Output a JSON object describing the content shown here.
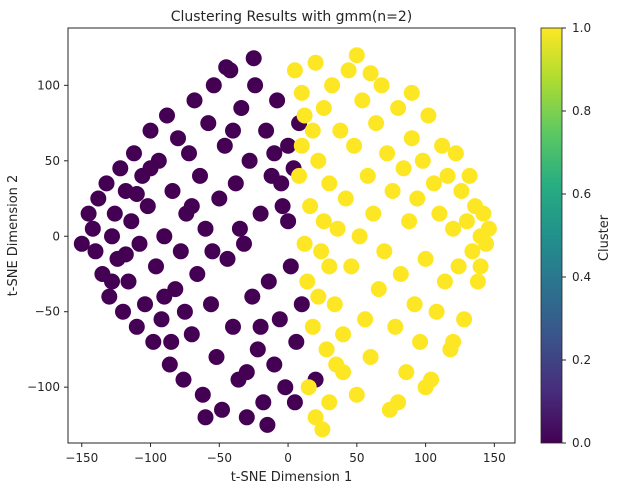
{
  "chart_data": {
    "type": "scatter",
    "title": "Clustering Results with gmm(n=2)",
    "xlabel": "t-SNE Dimension 1",
    "ylabel": "t-SNE Dimension 2",
    "xlim": [
      -160,
      165
    ],
    "ylim": [
      -137,
      138
    ],
    "xticks": [
      -150,
      -100,
      -50,
      0,
      50,
      100,
      150
    ],
    "yticks": [
      -100,
      -50,
      0,
      50,
      100
    ],
    "xtick_labels": [
      "−150",
      "−100",
      "−50",
      "0",
      "50",
      "100",
      "150"
    ],
    "ytick_labels": [
      "−100",
      "−50",
      "0",
      "50",
      "100"
    ],
    "grid": false,
    "colormap": "viridis",
    "colorbar": {
      "label": "Cluster",
      "range": [
        0.0,
        1.0
      ],
      "ticks": [
        0.0,
        0.2,
        0.4,
        0.6,
        0.8,
        1.0
      ],
      "tick_labels": [
        "0.0",
        "0.2",
        "0.4",
        "0.6",
        "0.8",
        "1.0"
      ]
    },
    "series": [
      {
        "cluster": 0,
        "color": "#440154",
        "points": [
          [
            -145,
            15
          ],
          [
            -142,
            5
          ],
          [
            -140,
            -10
          ],
          [
            -138,
            25
          ],
          [
            -135,
            -25
          ],
          [
            -132,
            35
          ],
          [
            -130,
            -40
          ],
          [
            -128,
            0
          ],
          [
            -126,
            15
          ],
          [
            -124,
            -15
          ],
          [
            -122,
            45
          ],
          [
            -120,
            -50
          ],
          [
            -118,
            30
          ],
          [
            -116,
            -30
          ],
          [
            -114,
            10
          ],
          [
            -112,
            55
          ],
          [
            -110,
            -60
          ],
          [
            -108,
            -5
          ],
          [
            -106,
            40
          ],
          [
            -104,
            -45
          ],
          [
            -102,
            20
          ],
          [
            -100,
            70
          ],
          [
            -98,
            -70
          ],
          [
            -96,
            -20
          ],
          [
            -94,
            50
          ],
          [
            -92,
            -55
          ],
          [
            -90,
            0
          ],
          [
            -88,
            80
          ],
          [
            -86,
            -85
          ],
          [
            -84,
            30
          ],
          [
            -82,
            -35
          ],
          [
            -80,
            65
          ],
          [
            -78,
            -10
          ],
          [
            -76,
            -95
          ],
          [
            -74,
            15
          ],
          [
            -72,
            55
          ],
          [
            -70,
            -65
          ],
          [
            -68,
            90
          ],
          [
            -66,
            -25
          ],
          [
            -64,
            40
          ],
          [
            -62,
            -105
          ],
          [
            -60,
            5
          ],
          [
            -58,
            75
          ],
          [
            -56,
            -45
          ],
          [
            -54,
            100
          ],
          [
            -52,
            -80
          ],
          [
            -50,
            25
          ],
          [
            -48,
            -115
          ],
          [
            -46,
            60
          ],
          [
            -44,
            -15
          ],
          [
            -42,
            110
          ],
          [
            -40,
            -60
          ],
          [
            -38,
            35
          ],
          [
            -36,
            -95
          ],
          [
            -34,
            85
          ],
          [
            -32,
            -5
          ],
          [
            -30,
            -120
          ],
          [
            -28,
            50
          ],
          [
            -26,
            -40
          ],
          [
            -24,
            100
          ],
          [
            -22,
            -75
          ],
          [
            -20,
            15
          ],
          [
            -18,
            -110
          ],
          [
            -16,
            70
          ],
          [
            -14,
            -30
          ],
          [
            -12,
            40
          ],
          [
            -10,
            -85
          ],
          [
            -8,
            90
          ],
          [
            -6,
            -55
          ],
          [
            -4,
            20
          ],
          [
            -2,
            -100
          ],
          [
            0,
            60
          ],
          [
            2,
            -20
          ],
          [
            4,
            45
          ],
          [
            6,
            -70
          ],
          [
            8,
            75
          ],
          [
            10,
            -45
          ],
          [
            -150,
            -5
          ],
          [
            -128,
            -30
          ],
          [
            -110,
            28
          ],
          [
            -90,
            -40
          ],
          [
            -70,
            20
          ],
          [
            -55,
            -10
          ],
          [
            -40,
            70
          ],
          [
            -20,
            -60
          ],
          [
            0,
            10
          ],
          [
            -5,
            35
          ],
          [
            -30,
            -90
          ],
          [
            -85,
            -70
          ],
          [
            -60,
            -120
          ],
          [
            -15,
            -125
          ],
          [
            -45,
            112
          ],
          [
            -25,
            118
          ],
          [
            -100,
            45
          ],
          [
            -118,
            -12
          ],
          [
            -75,
            -50
          ],
          [
            -35,
            5
          ],
          [
            -10,
            55
          ],
          [
            5,
            -110
          ],
          [
            20,
            -95
          ]
        ]
      },
      {
        "cluster": 1,
        "color": "#fde725",
        "points": [
          [
            5,
            110
          ],
          [
            10,
            95
          ],
          [
            12,
            80
          ],
          [
            14,
            -30
          ],
          [
            16,
            20
          ],
          [
            18,
            -60
          ],
          [
            20,
            115
          ],
          [
            22,
            50
          ],
          [
            24,
            -10
          ],
          [
            26,
            85
          ],
          [
            28,
            -75
          ],
          [
            30,
            35
          ],
          [
            32,
            100
          ],
          [
            34,
            -45
          ],
          [
            36,
            5
          ],
          [
            38,
            70
          ],
          [
            40,
            -90
          ],
          [
            42,
            25
          ],
          [
            44,
            110
          ],
          [
            46,
            -20
          ],
          [
            48,
            60
          ],
          [
            50,
            -105
          ],
          [
            52,
            0
          ],
          [
            54,
            90
          ],
          [
            56,
            -55
          ],
          [
            58,
            40
          ],
          [
            60,
            -80
          ],
          [
            62,
            15
          ],
          [
            64,
            75
          ],
          [
            66,
            -35
          ],
          [
            68,
            100
          ],
          [
            70,
            -10
          ],
          [
            72,
            55
          ],
          [
            74,
            -115
          ],
          [
            76,
            30
          ],
          [
            78,
            -60
          ],
          [
            80,
            85
          ],
          [
            82,
            -25
          ],
          [
            84,
            45
          ],
          [
            86,
            -90
          ],
          [
            88,
            10
          ],
          [
            90,
            65
          ],
          [
            92,
            -45
          ],
          [
            94,
            25
          ],
          [
            96,
            -70
          ],
          [
            98,
            50
          ],
          [
            100,
            -15
          ],
          [
            102,
            80
          ],
          [
            104,
            -95
          ],
          [
            106,
            35
          ],
          [
            108,
            -50
          ],
          [
            110,
            15
          ],
          [
            112,
            60
          ],
          [
            114,
            -30
          ],
          [
            116,
            40
          ],
          [
            118,
            -75
          ],
          [
            120,
            5
          ],
          [
            122,
            55
          ],
          [
            124,
            -20
          ],
          [
            126,
            30
          ],
          [
            128,
            -55
          ],
          [
            130,
            10
          ],
          [
            132,
            40
          ],
          [
            134,
            -10
          ],
          [
            136,
            20
          ],
          [
            138,
            -30
          ],
          [
            140,
            0
          ],
          [
            142,
            15
          ],
          [
            144,
            -5
          ],
          [
            146,
            5
          ],
          [
            15,
            -100
          ],
          [
            20,
            -120
          ],
          [
            25,
            -128
          ],
          [
            30,
            -110
          ],
          [
            35,
            -85
          ],
          [
            40,
            -65
          ],
          [
            8,
            40
          ],
          [
            10,
            60
          ],
          [
            12,
            -5
          ],
          [
            18,
            70
          ],
          [
            22,
            -40
          ],
          [
            26,
            10
          ],
          [
            30,
            -20
          ],
          [
            60,
            108
          ],
          [
            80,
            -110
          ],
          [
            100,
            -100
          ],
          [
            120,
            -70
          ],
          [
            140,
            -20
          ],
          [
            90,
            95
          ],
          [
            50,
            120
          ]
        ]
      }
    ]
  }
}
